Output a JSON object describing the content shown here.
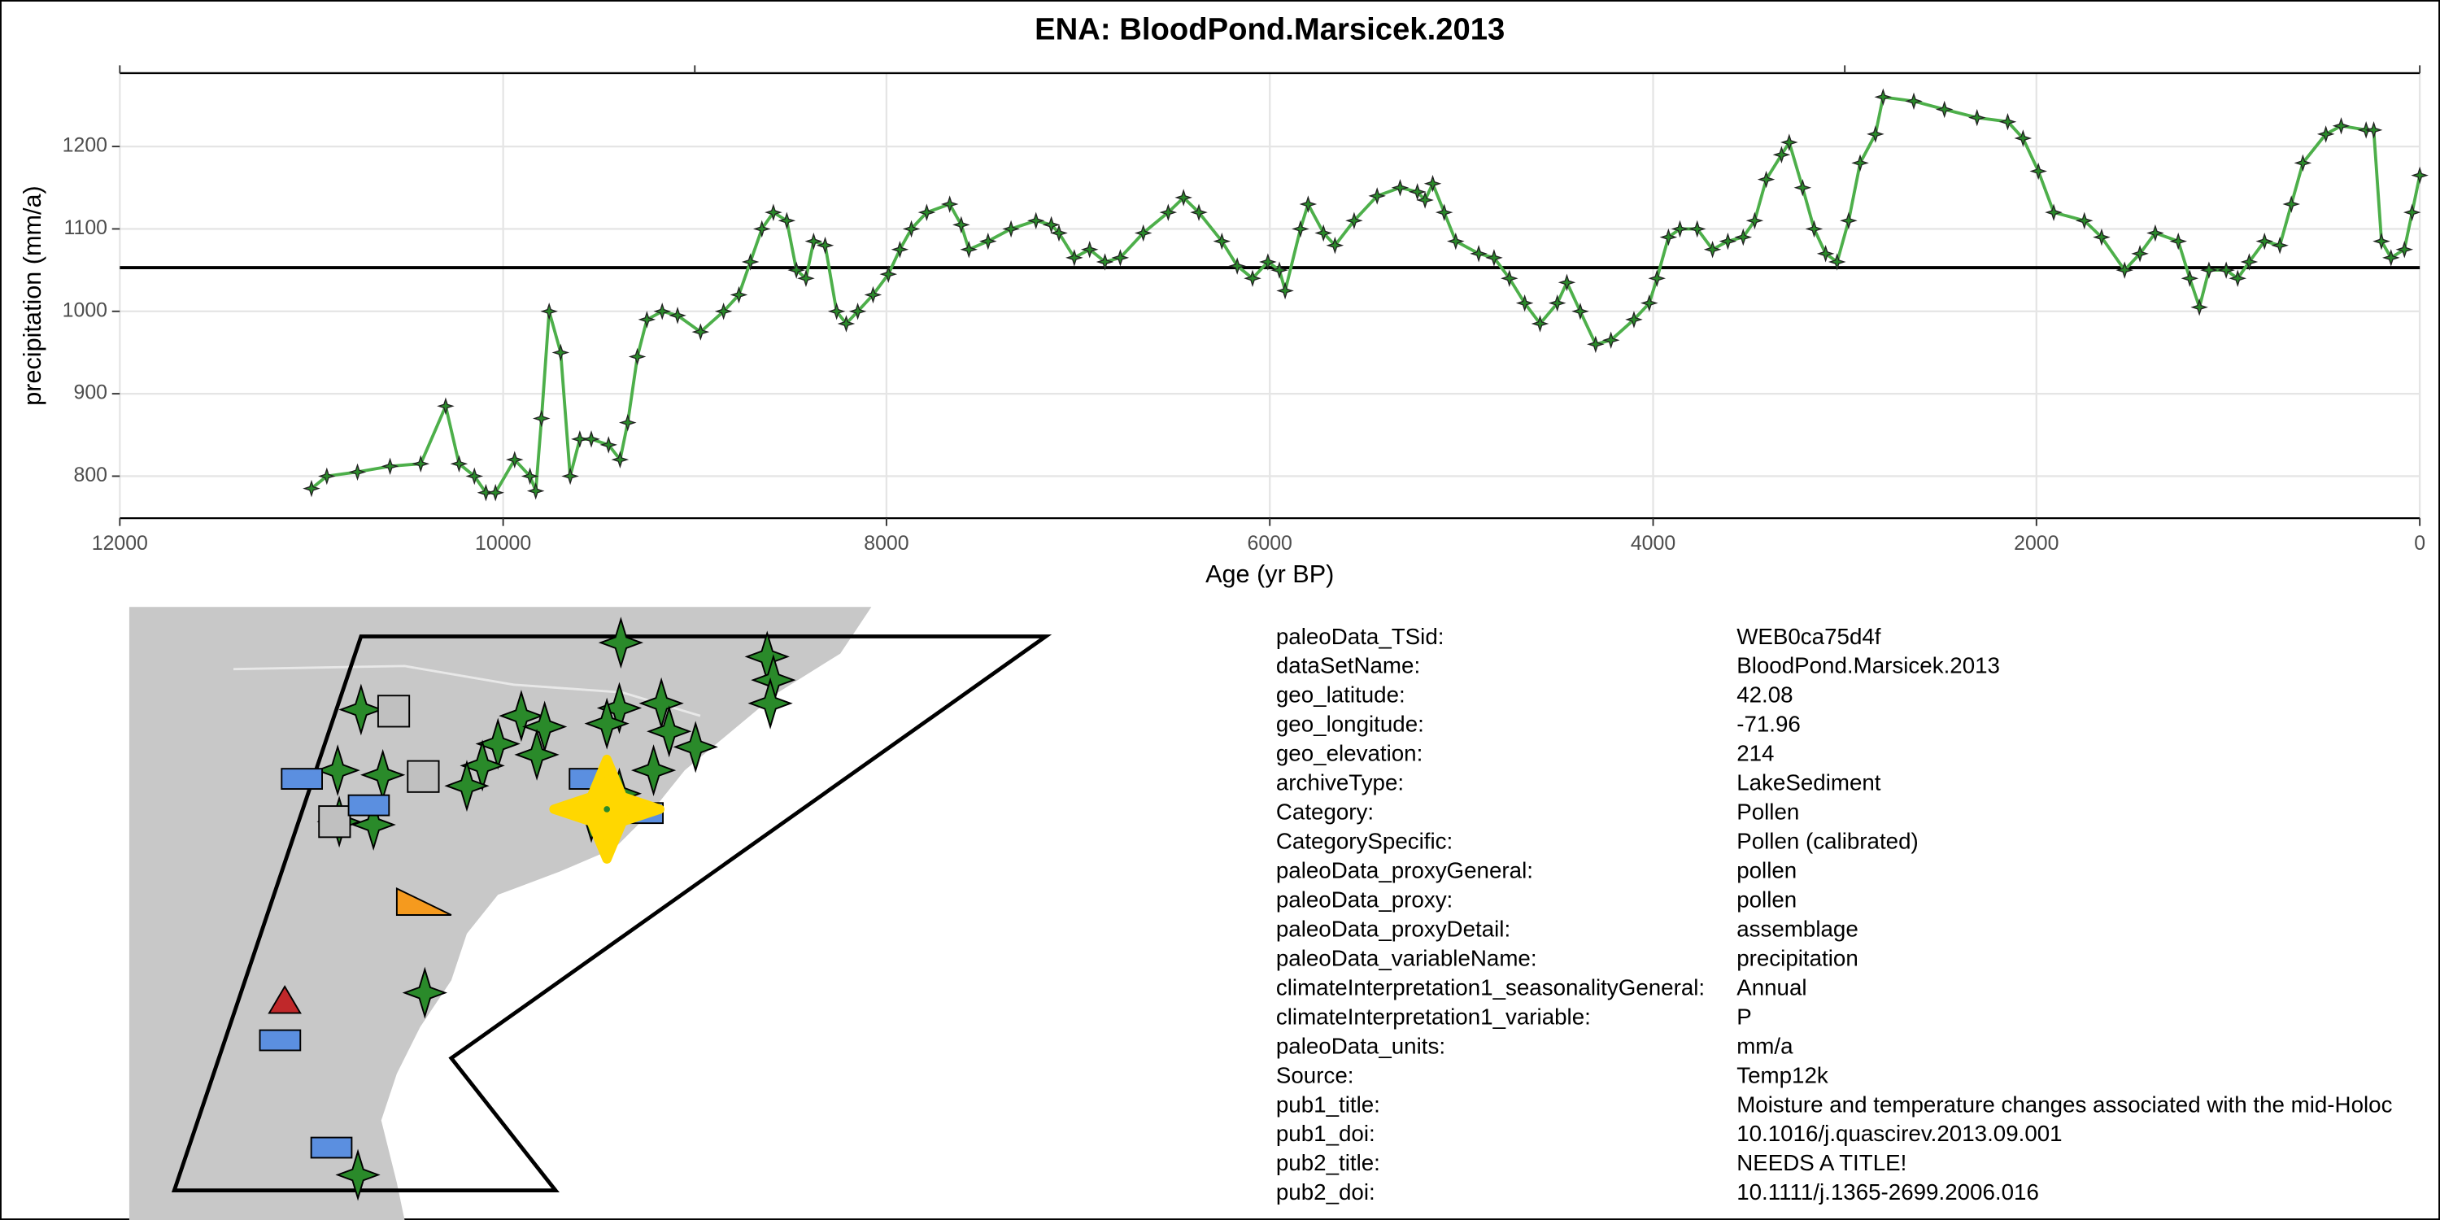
{
  "chart_data": {
    "type": "line",
    "title": "ENA: BloodPond.Marsicek.2013",
    "x_label": "Age (yr BP)",
    "y_label": "precipitation (mm/a)",
    "xlim": [
      12000,
      0
    ],
    "xticks": [
      12000,
      10000,
      8000,
      6000,
      4000,
      2000,
      0
    ],
    "top_xticks": [
      12000,
      9000,
      3000,
      0
    ],
    "ylim": [
      749,
      1289
    ],
    "yticks": [
      800,
      900,
      1000,
      1100,
      1200
    ],
    "grid": true,
    "color": "#4daf4a",
    "hline": 1053,
    "x": [
      11000,
      10920,
      10760,
      10590,
      10430,
      10300,
      10230,
      10150,
      10090,
      10040,
      9940,
      9860,
      9830,
      9800,
      9760,
      9700,
      9650,
      9600,
      9540,
      9450,
      9390,
      9350,
      9300,
      9250,
      9170,
      9090,
      8970,
      8850,
      8770,
      8710,
      8650,
      8590,
      8520,
      8470,
      8420,
      8380,
      8320,
      8260,
      8210,
      8150,
      8070,
      7990,
      7930,
      7870,
      7790,
      7670,
      7610,
      7570,
      7470,
      7350,
      7220,
      7140,
      7100,
      7020,
      6940,
      6860,
      6780,
      6660,
      6530,
      6450,
      6370,
      6250,
      6170,
      6090,
      6010,
      5950,
      5920,
      5840,
      5800,
      5720,
      5660,
      5560,
      5440,
      5320,
      5230,
      5190,
      5150,
      5090,
      5030,
      4910,
      4830,
      4750,
      4670,
      4590,
      4500,
      4450,
      4380,
      4300,
      4220,
      4100,
      4020,
      3980,
      3920,
      3860,
      3770,
      3690,
      3610,
      3530,
      3470,
      3410,
      3330,
      3290,
      3220,
      3160,
      3100,
      3040,
      2980,
      2920,
      2840,
      2800,
      2640,
      2480,
      2310,
      2150,
      2070,
      1990,
      1910,
      1750,
      1660,
      1540,
      1460,
      1380,
      1260,
      1200,
      1150,
      1100,
      1010,
      950,
      890,
      810,
      730,
      670,
      610,
      490,
      410,
      280,
      240,
      200,
      150,
      80,
      40,
      0
    ],
    "values": [
      785,
      800,
      805,
      812,
      815,
      885,
      815,
      800,
      780,
      780,
      820,
      800,
      782,
      870,
      1000,
      950,
      800,
      845,
      845,
      838,
      820,
      865,
      945,
      990,
      1000,
      995,
      975,
      1000,
      1020,
      1060,
      1100,
      1120,
      1110,
      1050,
      1040,
      1085,
      1080,
      1000,
      985,
      1000,
      1020,
      1045,
      1075,
      1100,
      1120,
      1130,
      1105,
      1075,
      1085,
      1100,
      1110,
      1105,
      1095,
      1065,
      1075,
      1060,
      1065,
      1095,
      1120,
      1138,
      1120,
      1085,
      1055,
      1040,
      1060,
      1050,
      1025,
      1100,
      1130,
      1095,
      1080,
      1110,
      1140,
      1150,
      1145,
      1135,
      1155,
      1120,
      1085,
      1070,
      1065,
      1040,
      1010,
      985,
      1010,
      1035,
      1000,
      960,
      965,
      990,
      1010,
      1040,
      1090,
      1100,
      1100,
      1075,
      1085,
      1090,
      1110,
      1160,
      1190,
      1205,
      1150,
      1100,
      1070,
      1060,
      1110,
      1180,
      1215,
      1260,
      1255,
      1245,
      1235,
      1230,
      1210,
      1170,
      1120,
      1110,
      1090,
      1050,
      1070,
      1095,
      1085,
      1040,
      1005,
      1050,
      1050,
      1040,
      1060,
      1085,
      1080,
      1130,
      1180,
      1215,
      1225,
      1220,
      1220,
      1085,
      1065,
      1075,
      1120,
      1165
    ]
  },
  "metadata": [
    [
      "paleoData_TSid:",
      "WEB0ca75d4f"
    ],
    [
      "dataSetName:",
      "BloodPond.Marsicek.2013"
    ],
    [
      "geo_latitude:",
      "42.08"
    ],
    [
      "geo_longitude:",
      "-71.96"
    ],
    [
      "geo_elevation:",
      "214"
    ],
    [
      "archiveType:",
      "LakeSediment"
    ],
    [
      "Category:",
      "Pollen"
    ],
    [
      "CategorySpecific:",
      "Pollen (calibrated)"
    ],
    [
      "paleoData_proxyGeneral:",
      "pollen"
    ],
    [
      "paleoData_proxy:",
      "pollen"
    ],
    [
      "paleoData_proxyDetail:",
      "assemblage"
    ],
    [
      "paleoData_variableName:",
      "precipitation"
    ],
    [
      "climateInterpretation1_seasonalityGeneral:",
      "Annual"
    ],
    [
      "climateInterpretation1_variable:",
      "P"
    ],
    [
      "paleoData_units:",
      "mm/a"
    ],
    [
      "Source:",
      "Temp12k"
    ],
    [
      "pub1_title:",
      "Moisture and temperature changes associated with the mid-Holoc"
    ],
    [
      "pub1_doi:",
      "10.1016/j.quascirev.2013.09.001"
    ],
    [
      "pub2_title:",
      "NEEDS A TITLE!"
    ],
    [
      "pub2_doi:",
      "10.1111/j.1365-2699.2006.016"
    ]
  ]
}
